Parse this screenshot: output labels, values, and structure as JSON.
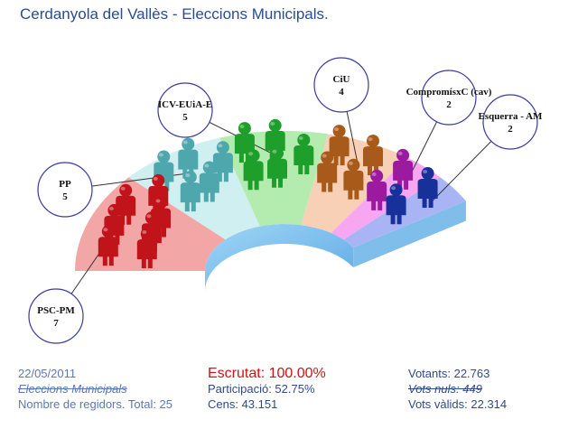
{
  "title": "Cerdanyola del Vallès - Eleccions Municipals.",
  "chart_data": {
    "type": "parliament",
    "total_seats": 25,
    "parties": [
      {
        "name": "PSC-PM",
        "seats": 7,
        "color": "#f2a6a6",
        "figure": "#c0141a"
      },
      {
        "name": "PP",
        "seats": 5,
        "color": "#cfeff0",
        "figure": "#4ea7ad"
      },
      {
        "name": "ICV-EUiA-E",
        "seats": 5,
        "color": "#b4ecb0",
        "figure": "#1e9e2a"
      },
      {
        "name": "CiU",
        "seats": 4,
        "color": "#f7d0b5",
        "figure": "#a85a1a"
      },
      {
        "name": "CompromísxC (cav)",
        "seats": 2,
        "color": "#f7a6f2",
        "figure": "#9b1a9f"
      },
      {
        "name": "Esquerra - AM",
        "seats": 2,
        "color": "#a9b4f4",
        "figure": "#18309a"
      }
    ]
  },
  "footer": {
    "date": "22/05/2011",
    "election": "Eleccions Municipals",
    "regidors": "Nombre de regidors. Total: 25",
    "escrutat": "Escrutat: 100.00%",
    "participacio": "Participació: 52.75%",
    "cens": "Cens: 43.151",
    "votants": "Votants: 22.763",
    "vots_nuls": "Vots nuls: 449",
    "vots_valids": "Vots vàlids: 22.314"
  }
}
